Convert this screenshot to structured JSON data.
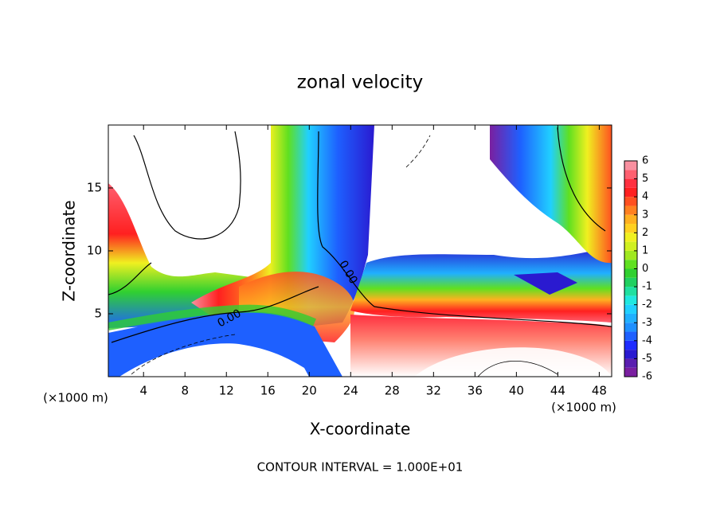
{
  "chart_data": {
    "type": "contour",
    "title": "zonal velocity",
    "xlabel": "X-coordinate",
    "ylabel": "Z-coordinate",
    "unit_label": "(×1000 m)",
    "footer": "CONTOUR INTERVAL = 1.000E+01",
    "contour_labels": [
      "0.00",
      "0.00"
    ],
    "xlim": [
      0.6,
      49.2
    ],
    "xticks": [
      4,
      8,
      12,
      16,
      20,
      24,
      28,
      32,
      36,
      40,
      44,
      48
    ],
    "ylim": [
      0,
      20
    ],
    "yticks": [
      5,
      10,
      15
    ],
    "colorbar": {
      "lim": [
        -6,
        6
      ],
      "ticks": [
        -6,
        -5,
        -4,
        -3,
        -2,
        -1,
        0,
        1,
        2,
        3,
        4,
        5,
        6
      ],
      "colors": [
        "#7a1fa0",
        "#5a1fb0",
        "#2a1ad0",
        "#1e2cff",
        "#1e60ff",
        "#1e90ff",
        "#20b0ff",
        "#20d0ff",
        "#20e8e0",
        "#20e0a0",
        "#20d060",
        "#30d030",
        "#60e020",
        "#a0e820",
        "#d0f020",
        "#f0f020",
        "#ffd020",
        "#ffb020",
        "#ff8020",
        "#ff5020",
        "#ff2020",
        "#ff3040",
        "#ff6070",
        "#f890a0"
      ]
    }
  }
}
